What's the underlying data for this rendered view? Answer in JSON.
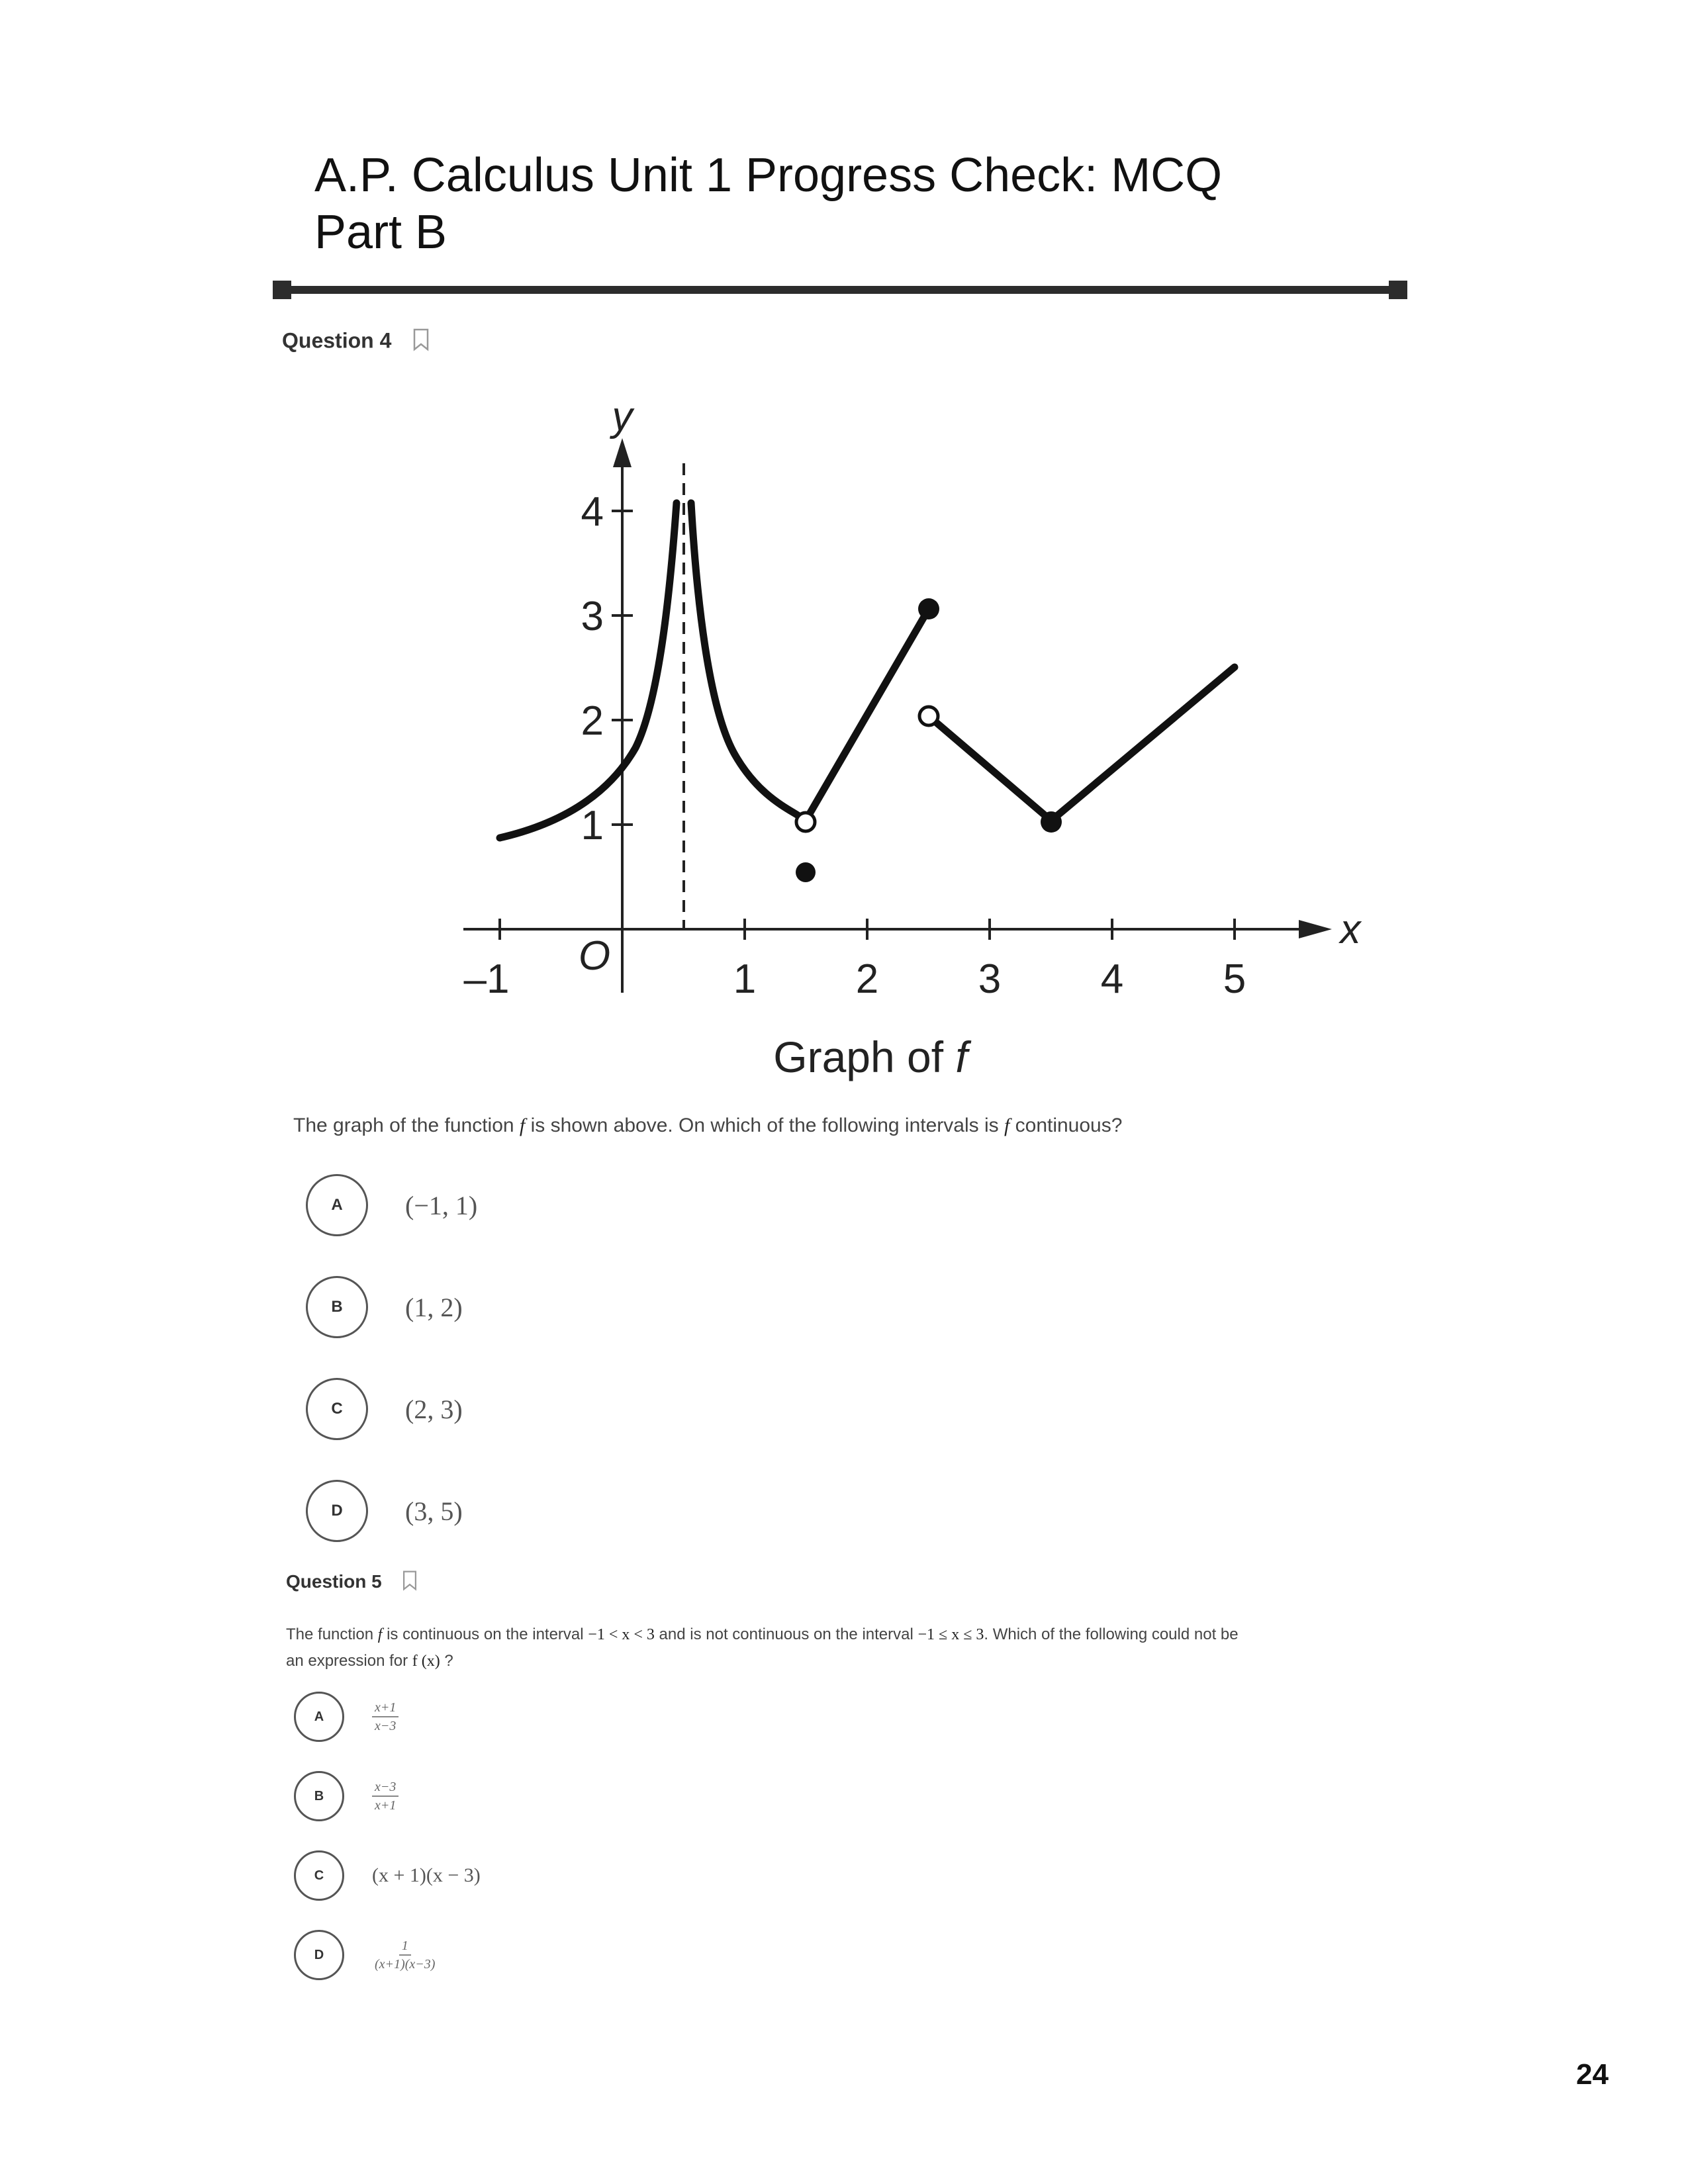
{
  "document": {
    "title_line1": "A.P. Calculus Unit 1 Progress Check: MCQ",
    "title_line2": "Part B",
    "page_number": "24"
  },
  "question4": {
    "heading": "Question 4",
    "graph": {
      "x_axis_label": "x",
      "y_axis_label": "y",
      "origin_label": "O",
      "caption_prefix": "Graph of ",
      "caption_var": "f",
      "x_tick_labels": [
        "–1",
        "1",
        "2",
        "3",
        "4",
        "5"
      ],
      "y_tick_labels": [
        "1",
        "2",
        "3",
        "4"
      ]
    },
    "prompt_parts": [
      "The graph of the function ",
      "f",
      " is shown above. On which of the following intervals is ",
      "f",
      " continuous?"
    ],
    "choices": [
      {
        "letter": "A",
        "text": "(−1, 1)"
      },
      {
        "letter": "B",
        "text": "(1, 2)"
      },
      {
        "letter": "C",
        "text": "(2, 3)"
      },
      {
        "letter": "D",
        "text": "(3, 5)"
      }
    ]
  },
  "question5": {
    "heading": "Question 5",
    "prompt_parts": [
      "The function ",
      "f",
      " is continuous on the interval ",
      "−1 < x < 3",
      " and is not continuous on the interval ",
      "−1 ≤ x ≤ 3",
      ". Which of the following could not be",
      "an expression for ",
      "f (x)",
      " ?"
    ],
    "choices": [
      {
        "letter": "A",
        "numerator": "x+1",
        "denominator": "x−3"
      },
      {
        "letter": "B",
        "numerator": "x−3",
        "denominator": "x+1"
      },
      {
        "letter": "C",
        "text": "(x + 1)(x − 3)"
      },
      {
        "letter": "D",
        "numerator": "1",
        "denominator": "(x+1)(x−3)"
      }
    ]
  }
}
